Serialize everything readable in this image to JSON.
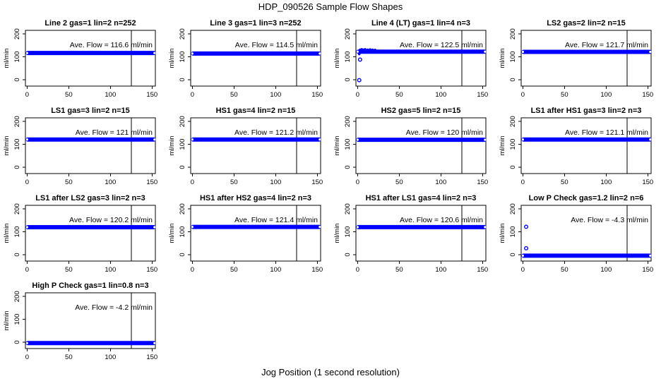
{
  "page": {
    "title": "HDP_090526  Sample Flow Shapes",
    "xlabel": "Jog Position (1 second resolution)"
  },
  "colors": {
    "point_blue": "#0000ff",
    "axis_black": "#000000",
    "background": "#ffffff"
  },
  "chart_data": {
    "type": "scatter",
    "title": "HDP_090526  Sample Flow Shapes",
    "xlabel": "Jog Position (1 second resolution)",
    "ylabel": "ml/min",
    "x_ticks": [
      0,
      50,
      100,
      150
    ],
    "y_ticks": [
      0,
      100,
      200
    ],
    "xlim": [
      -2,
      154
    ],
    "ylim": [
      -28,
      216
    ],
    "grid": false,
    "marker_line_x": 125,
    "band_x_range": [
      0,
      153
    ],
    "annotation_y": 142,
    "panels": [
      {
        "title": "Line 2 gas=1 lin=2 n=252",
        "ave_flow": 116.6,
        "annotation": "Ave. Flow = 116.6 ml/min",
        "band_y": 116.6,
        "outliers": [],
        "extra_points": []
      },
      {
        "title": "Line 3 gas=1 lin=3 n=252",
        "ave_flow": 114.5,
        "annotation": "Ave. Flow = 114.5 ml/min",
        "band_y": 114.5,
        "outliers": [],
        "extra_points": []
      },
      {
        "title": "Line 4 (LT) gas=1 lin=4 n=3",
        "ave_flow": 122.5,
        "annotation": "Ave. Flow = 122.5 ml/min",
        "band_y": 122.5,
        "outliers": [
          [
            2,
            -2
          ],
          [
            3,
            88
          ]
        ],
        "extra_points": [
          [
            2,
            112
          ],
          [
            3,
            131
          ],
          [
            5,
            133
          ],
          [
            7,
            131
          ],
          [
            9,
            133
          ],
          [
            12,
            131
          ],
          [
            15,
            132
          ],
          [
            18,
            131
          ],
          [
            21,
            130
          ]
        ]
      },
      {
        "title": "LS2 gas=2 lin=2 n=15",
        "ave_flow": 121.7,
        "annotation": "Ave. Flow = 121.7 ml/min",
        "band_y": 121.7,
        "outliers": [],
        "extra_points": []
      },
      {
        "title": "LS1 gas=3 lin=2 n=15",
        "ave_flow": 121,
        "annotation": "Ave. Flow = 121 ml/min",
        "band_y": 121,
        "outliers": [],
        "extra_points": []
      },
      {
        "title": "HS1 gas=4 lin=2 n=15",
        "ave_flow": 121.2,
        "annotation": "Ave. Flow = 121.2 ml/min",
        "band_y": 121.2,
        "outliers": [],
        "extra_points": []
      },
      {
        "title": "HS2 gas=5 lin=2 n=15",
        "ave_flow": 120,
        "annotation": "Ave. Flow = 120 ml/min",
        "band_y": 120,
        "outliers": [],
        "extra_points": []
      },
      {
        "title": "LS1 after HS1 gas=3 lin=2 n=3",
        "ave_flow": 121.1,
        "annotation": "Ave. Flow = 121.1 ml/min",
        "band_y": 121.1,
        "outliers": [],
        "extra_points": []
      },
      {
        "title": "LS1 after LS2 gas=3 lin=2 n=3",
        "ave_flow": 120.2,
        "annotation": "Ave. Flow = 120.2 ml/min",
        "band_y": 120.2,
        "outliers": [],
        "extra_points": []
      },
      {
        "title": "HS1 after HS2 gas=4 lin=2 n=3",
        "ave_flow": 121.4,
        "annotation": "Ave. Flow = 121.4 ml/min",
        "band_y": 121.4,
        "outliers": [],
        "extra_points": []
      },
      {
        "title": "HS1 after LS1 gas=4 lin=2 n=3",
        "ave_flow": 120.6,
        "annotation": "Ave. Flow = 120.6 ml/min",
        "band_y": 120.6,
        "outliers": [],
        "extra_points": []
      },
      {
        "title": "Low P Check gas=1.2 lin=2 n=6",
        "ave_flow": -4.3,
        "annotation": "Ave. Flow = -4.3 ml/min",
        "band_y": -4.3,
        "outliers": [
          [
            4,
            122
          ],
          [
            4,
            28
          ]
        ],
        "extra_points": []
      },
      {
        "title": "High P Check gas=1 lin=0.8 n=3",
        "ave_flow": -4.2,
        "annotation": "Ave. Flow = -4.2 ml/min",
        "band_y": -4.2,
        "outliers": [],
        "extra_points": []
      }
    ]
  }
}
